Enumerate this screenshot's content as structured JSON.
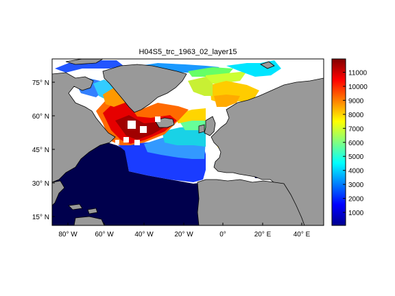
{
  "title": "H04S5_trc_1963_02_layer15",
  "lon_ticks": [
    "80° W",
    "60° W",
    "40° W",
    "20° W",
    "0°",
    "20° E",
    "40° E"
  ],
  "lat_ticks": [
    "75° N",
    "60° N",
    "45° N",
    "30° N",
    "15° N"
  ],
  "colorbar": {
    "min": 0,
    "max": 11800,
    "ticks": [
      "1000",
      "2000",
      "3000",
      "4000",
      "5000",
      "6000",
      "7000",
      "8000",
      "9000",
      "10000",
      "11000"
    ],
    "colormap": "jet"
  },
  "map": {
    "lon_range": [
      -90,
      48
    ],
    "lat_range": [
      10,
      85
    ],
    "land_color": "#999999",
    "nodata_color": "#ffffff"
  }
}
